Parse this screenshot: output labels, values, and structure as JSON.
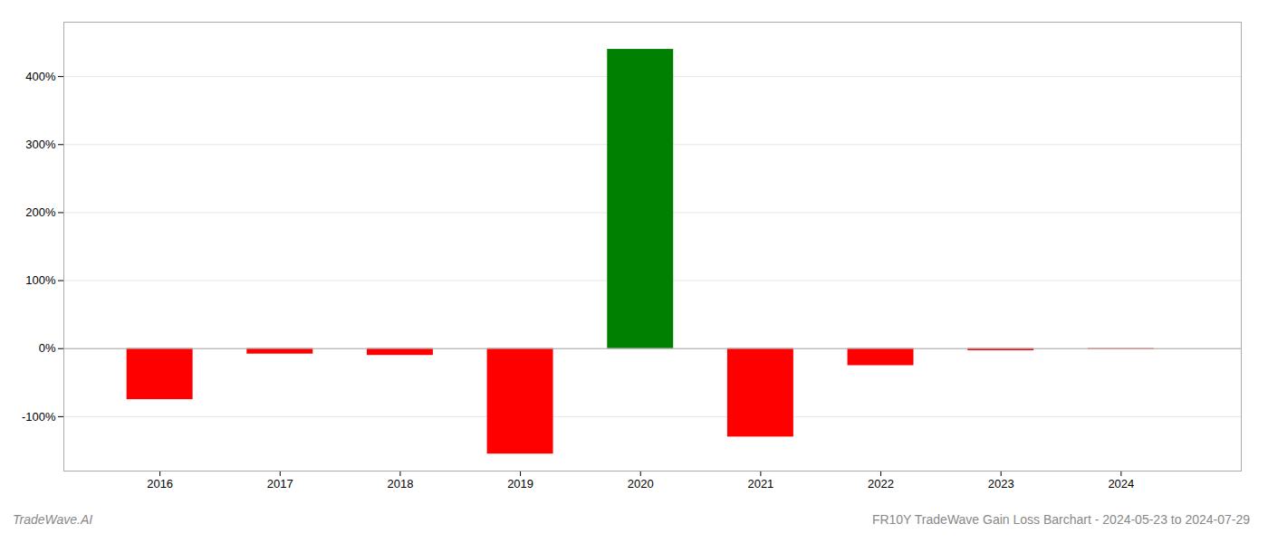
{
  "chart_data": {
    "type": "bar",
    "title": "FR10Y TradeWave Gain Loss Barchart - 2024-05-23 to 2024-07-29",
    "annotations": [
      "TradeWave.AI"
    ],
    "x": [
      2016,
      2017,
      2018,
      2019,
      2020,
      2021,
      2022,
      2023,
      2024
    ],
    "values": [
      -75,
      -8,
      -10,
      -155,
      440,
      -130,
      -25,
      -3,
      -1
    ],
    "colors": [
      "#ff0000",
      "#ff0000",
      "#ff0000",
      "#ff0000",
      "#008000",
      "#ff0000",
      "#ff0000",
      "#ff0000",
      "#ff0000"
    ],
    "xlim": [
      2015.2,
      2025.0
    ],
    "xticks": [
      2016,
      2017,
      2018,
      2019,
      2020,
      2021,
      2022,
      2023,
      2024
    ],
    "ylim": [
      -180,
      480
    ],
    "yticks": [
      {
        "value": -100,
        "label": "-100%"
      },
      {
        "value": 0,
        "label": "0%"
      },
      {
        "value": 100,
        "label": "100%"
      },
      {
        "value": 200,
        "label": "200%"
      },
      {
        "value": 300,
        "label": "300%"
      },
      {
        "value": 400,
        "label": "400%"
      }
    ],
    "grid": true
  }
}
